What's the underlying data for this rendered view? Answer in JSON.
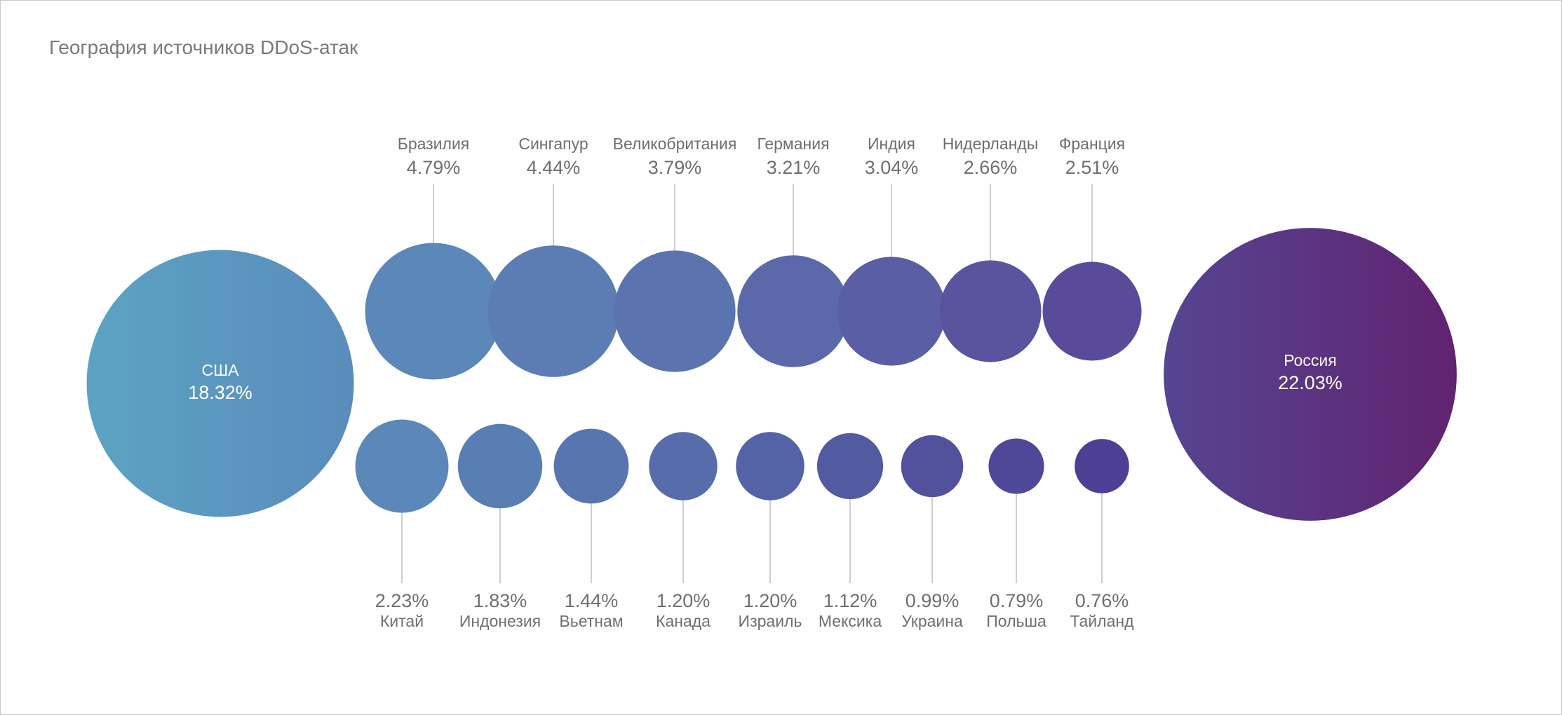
{
  "title": "География источников DDoS-атак",
  "chart_data": {
    "type": "bubble",
    "title": "География источников DDoS-атак",
    "unit": "%",
    "large": [
      {
        "country": "США",
        "value": "18.32%",
        "pct": 18.32
      },
      {
        "country": "Россия",
        "value": "22.03%",
        "pct": 22.03
      }
    ],
    "top_row": [
      {
        "country": "Бразилия",
        "value": "4.79%",
        "pct": 4.79
      },
      {
        "country": "Сингапур",
        "value": "4.44%",
        "pct": 4.44
      },
      {
        "country": "Великобритания",
        "value": "3.79%",
        "pct": 3.79
      },
      {
        "country": "Германия",
        "value": "3.21%",
        "pct": 3.21
      },
      {
        "country": "Индия",
        "value": "3.04%",
        "pct": 3.04
      },
      {
        "country": "Нидерланды",
        "value": "2.66%",
        "pct": 2.66
      },
      {
        "country": "Франция",
        "value": "2.51%",
        "pct": 2.51
      }
    ],
    "bottom_row": [
      {
        "country": "Китай",
        "value": "2.23%",
        "pct": 2.23
      },
      {
        "country": "Индонезия",
        "value": "1.83%",
        "pct": 1.83
      },
      {
        "country": "Вьетнам",
        "value": "1.44%",
        "pct": 1.44
      },
      {
        "country": "Канада",
        "value": "1.20%",
        "pct": 1.2
      },
      {
        "country": "Израиль",
        "value": "1.20%",
        "pct": 1.2
      },
      {
        "country": "Мексика",
        "value": "1.12%",
        "pct": 1.12
      },
      {
        "country": "Украина",
        "value": "0.99%",
        "pct": 0.99
      },
      {
        "country": "Польша",
        "value": "0.79%",
        "pct": 0.79
      },
      {
        "country": "Тайланд",
        "value": "0.76%",
        "pct": 0.76
      }
    ]
  }
}
